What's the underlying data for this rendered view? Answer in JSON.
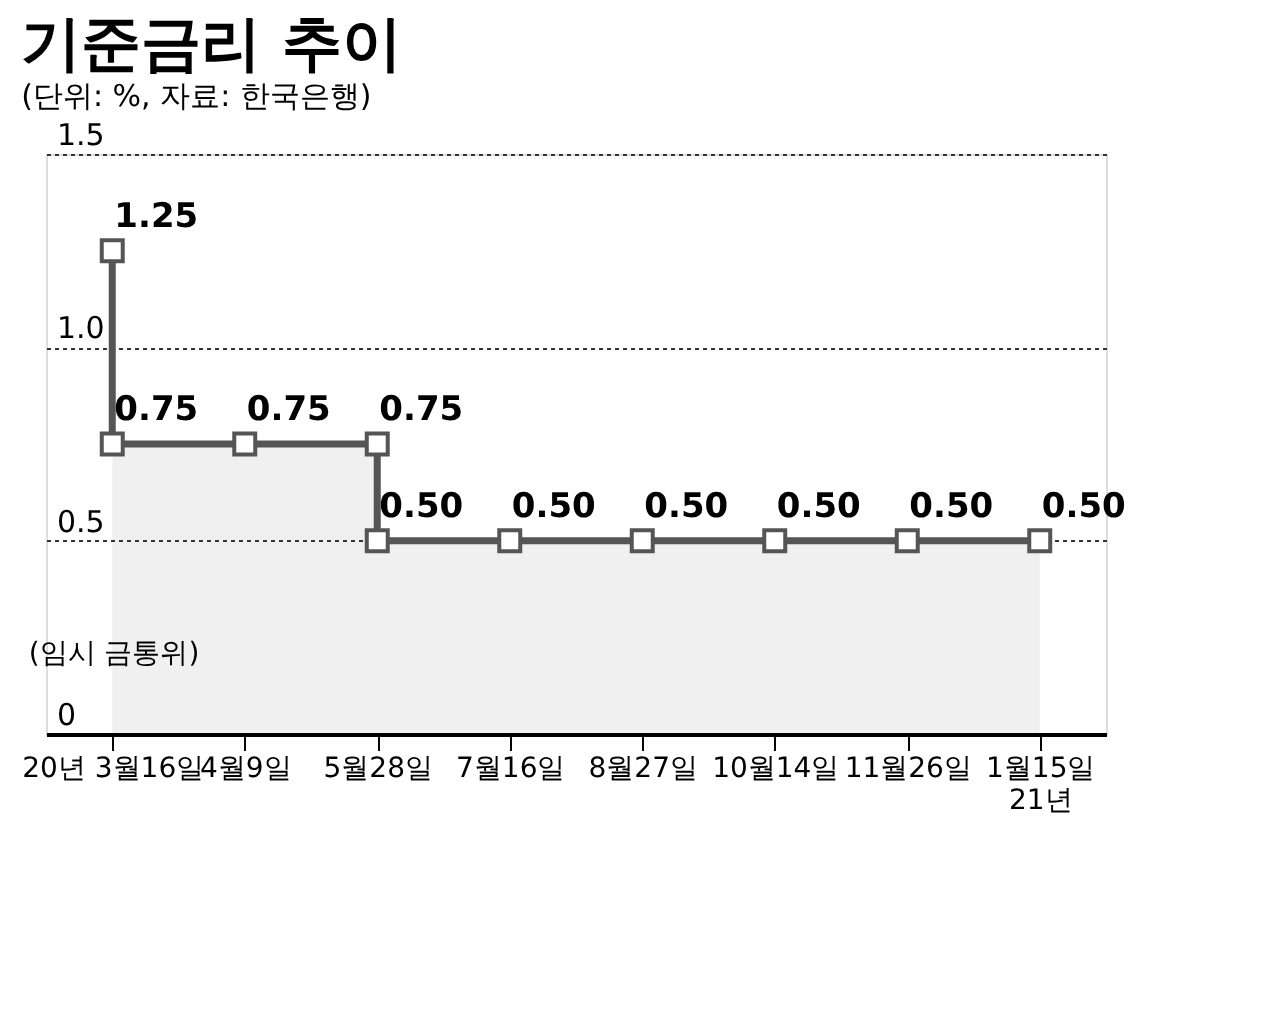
{
  "chart_data": {
    "type": "area",
    "title": "기준금리 추이",
    "subtitle": "(단위: %, 자료: 한국은행)",
    "categories": [
      "20년 3월16일",
      "4월9일",
      "5월28일",
      "7월16일",
      "8월27일",
      "10월14일",
      "11월26일",
      "1월15일\n21년"
    ],
    "series": [
      {
        "color": "#555555",
        "x": [
          "20년 3월16일",
          "20년 3월16일",
          "4월9일",
          "5월28일",
          "5월28일",
          "7월16일",
          "8월27일",
          "10월14일",
          "11월26일",
          "1월15일\n21년"
        ],
        "values": [
          1.25,
          0.75,
          0.75,
          0.75,
          0.5,
          0.5,
          0.5,
          0.5,
          0.5,
          0.5
        ],
        "value_labels": [
          "1.25",
          "0.75",
          "0.75",
          "0.75",
          "0.50",
          "0.50",
          "0.50",
          "0.50",
          "0.50",
          "0.50"
        ]
      }
    ],
    "ylim": [
      0,
      1.5
    ],
    "yticks": [
      0,
      {
        "value": 0.5,
        "label": "0.5"
      },
      {
        "value": 1,
        "label": "1.0"
      },
      1.5
    ],
    "grid": "y",
    "marker": "square",
    "line_style": "solid",
    "annotations": [
      "(임시 금통위)"
    ]
  }
}
